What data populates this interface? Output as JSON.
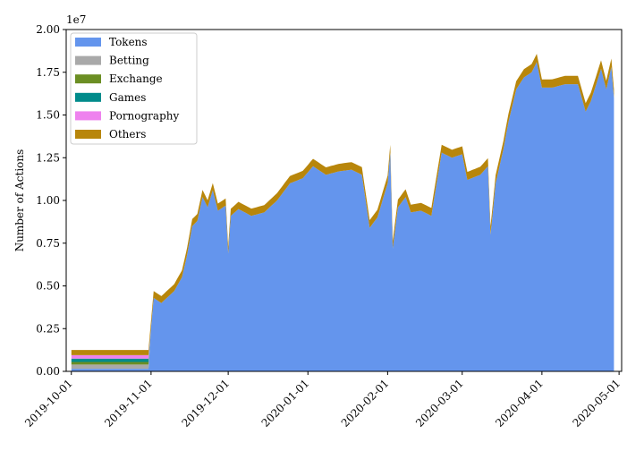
{
  "chart_data": {
    "type": "area",
    "stacked": true,
    "title": "",
    "xlabel": "",
    "ylabel": "Number of Actions",
    "y_scale_label": "1e7",
    "ylim": [
      0,
      20000000
    ],
    "xlim": [
      "2019-09-29",
      "2020-05-02"
    ],
    "y_ticks": [
      0,
      2500000,
      5000000,
      7500000,
      10000000,
      12500000,
      15000000,
      17500000,
      20000000
    ],
    "y_tick_labels": [
      "0.00",
      "0.25",
      "0.50",
      "0.75",
      "1.00",
      "1.25",
      "1.50",
      "1.75",
      "2.00"
    ],
    "x_ticks": [
      "2019-10-01",
      "2019-11-01",
      "2019-12-01",
      "2020-01-01",
      "2020-02-01",
      "2020-03-01",
      "2020-04-01",
      "2020-05-01"
    ],
    "x_tick_labels": [
      "2019-10-01",
      "2019-11-01",
      "2019-12-01",
      "2020-01-01",
      "2020-02-01",
      "2020-03-01",
      "2020-04-01",
      "2020-05-01"
    ],
    "legend_position": "top-left",
    "grid": false,
    "series": [
      {
        "name": "Tokens",
        "color": "#6495ED",
        "points": [
          [
            "2019-10-01",
            150000
          ],
          [
            "2019-10-15",
            150000
          ],
          [
            "2019-10-31",
            150000
          ],
          [
            "2019-11-01",
            2600000
          ],
          [
            "2019-11-02",
            4300000
          ],
          [
            "2019-11-05",
            4000000
          ],
          [
            "2019-11-10",
            4700000
          ],
          [
            "2019-11-13",
            5500000
          ],
          [
            "2019-11-15",
            6800000
          ],
          [
            "2019-11-17",
            8500000
          ],
          [
            "2019-11-19",
            8800000
          ],
          [
            "2019-11-21",
            10200000
          ],
          [
            "2019-11-23",
            9600000
          ],
          [
            "2019-11-25",
            10600000
          ],
          [
            "2019-11-27",
            9400000
          ],
          [
            "2019-11-30",
            9700000
          ],
          [
            "2019-12-01",
            6900000
          ],
          [
            "2019-12-02",
            9100000
          ],
          [
            "2019-12-05",
            9500000
          ],
          [
            "2019-12-10",
            9100000
          ],
          [
            "2019-12-15",
            9300000
          ],
          [
            "2019-12-20",
            10000000
          ],
          [
            "2019-12-25",
            11000000
          ],
          [
            "2019-12-30",
            11300000
          ],
          [
            "2020-01-03",
            12000000
          ],
          [
            "2020-01-08",
            11500000
          ],
          [
            "2020-01-13",
            11700000
          ],
          [
            "2020-01-18",
            11800000
          ],
          [
            "2020-01-22",
            11500000
          ],
          [
            "2020-01-25",
            8400000
          ],
          [
            "2020-01-28",
            9000000
          ],
          [
            "2020-02-01",
            11000000
          ],
          [
            "2020-02-02",
            12800000
          ],
          [
            "2020-02-03",
            7200000
          ],
          [
            "2020-02-05",
            9600000
          ],
          [
            "2020-02-08",
            10200000
          ],
          [
            "2020-02-10",
            9300000
          ],
          [
            "2020-02-14",
            9400000
          ],
          [
            "2020-02-18",
            9100000
          ],
          [
            "2020-02-22",
            12800000
          ],
          [
            "2020-02-26",
            12500000
          ],
          [
            "2020-03-01",
            12700000
          ],
          [
            "2020-03-03",
            11200000
          ],
          [
            "2020-03-08",
            11500000
          ],
          [
            "2020-03-11",
            12000000
          ],
          [
            "2020-03-12",
            8000000
          ],
          [
            "2020-03-14",
            11000000
          ],
          [
            "2020-03-17",
            13000000
          ],
          [
            "2020-03-19",
            14600000
          ],
          [
            "2020-03-22",
            16500000
          ],
          [
            "2020-03-25",
            17200000
          ],
          [
            "2020-03-28",
            17500000
          ],
          [
            "2020-03-30",
            18100000
          ],
          [
            "2020-04-01",
            16600000
          ],
          [
            "2020-04-05",
            16600000
          ],
          [
            "2020-04-10",
            16800000
          ],
          [
            "2020-04-15",
            16800000
          ],
          [
            "2020-04-18",
            15200000
          ],
          [
            "2020-04-20",
            15800000
          ],
          [
            "2020-04-24",
            17700000
          ],
          [
            "2020-04-26",
            16500000
          ],
          [
            "2020-04-28",
            17800000
          ],
          [
            "2020-04-29",
            16000000
          ]
        ]
      },
      {
        "name": "Betting",
        "color": "#A9A9A9",
        "base": 0,
        "points": [
          [
            "2019-10-01",
            250000
          ],
          [
            "2019-10-31",
            250000
          ],
          [
            "2019-11-01",
            0
          ],
          [
            "2020-04-29",
            0
          ]
        ]
      },
      {
        "name": "Exchange",
        "color": "#6B8E23",
        "points": [
          [
            "2019-10-01",
            150000
          ],
          [
            "2019-10-31",
            150000
          ],
          [
            "2019-11-01",
            0
          ],
          [
            "2020-04-29",
            0
          ]
        ]
      },
      {
        "name": "Games",
        "color": "#008B8B",
        "points": [
          [
            "2019-10-01",
            200000
          ],
          [
            "2019-10-31",
            200000
          ],
          [
            "2019-11-01",
            0
          ],
          [
            "2020-04-29",
            0
          ]
        ]
      },
      {
        "name": "Pornography",
        "color": "#EE82EE",
        "points": [
          [
            "2019-10-01",
            200000
          ],
          [
            "2019-10-31",
            200000
          ],
          [
            "2019-11-01",
            0
          ],
          [
            "2020-04-29",
            0
          ]
        ]
      },
      {
        "name": "Others",
        "color": "#B8860B",
        "points": [
          [
            "2019-10-01",
            300000
          ],
          [
            "2019-10-31",
            300000
          ],
          [
            "2019-11-01",
            400000
          ],
          [
            "2020-04-29",
            500000
          ]
        ]
      }
    ]
  }
}
